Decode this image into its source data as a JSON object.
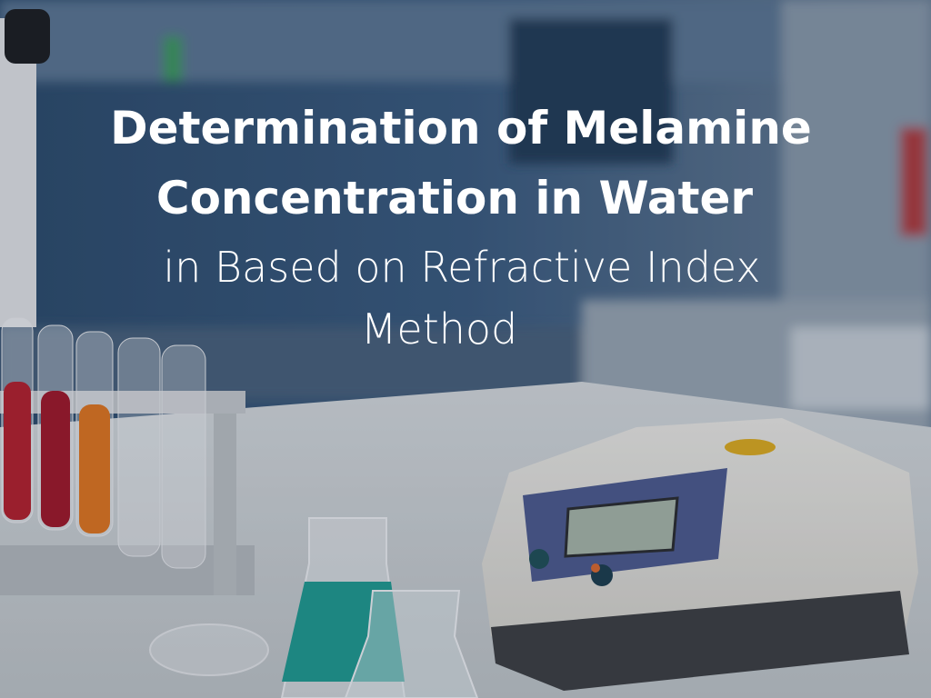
{
  "title": {
    "lines": [
      "Determination of Melamine",
      "Concentration in Water"
    ]
  },
  "subtitle": {
    "lines": [
      "in Based on Refractive Index",
      "Method"
    ]
  }
}
